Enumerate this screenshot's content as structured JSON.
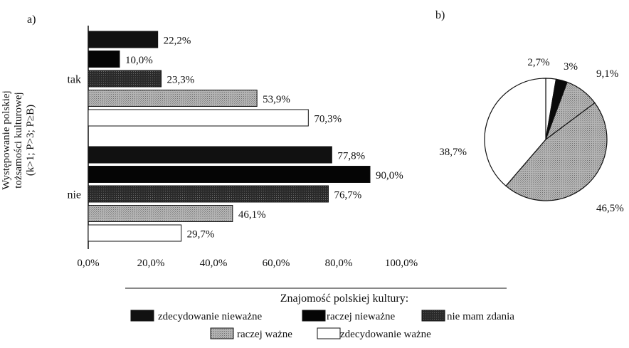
{
  "chart_data": [
    {
      "type": "bar",
      "orientation": "horizontal",
      "panel_label": "a)",
      "ylabel": "Występowanie polskiej\ntożsamości kulturowej\n(k>1; P>3; P≥B)",
      "categories": [
        "tak",
        "nie"
      ],
      "xlim": [
        0,
        100
      ],
      "xticks": [
        "0,0%",
        "20,0%",
        "40,0%",
        "60,0%",
        "80,0%",
        "100,0%"
      ],
      "legend_title": "Znajomość polskiej kultury:",
      "legend_position": "bottom",
      "series": [
        {
          "name": "zdecydowanie nieważne",
          "fill": "#111111",
          "values": [
            22.2,
            77.8
          ],
          "labels": [
            "22,2%",
            "77,8%"
          ]
        },
        {
          "name": "raczej nieważne",
          "fill": "#050505",
          "values": [
            10.0,
            90.0
          ],
          "labels": [
            "10,0%",
            "90,0%"
          ]
        },
        {
          "name": "nie mam zdania",
          "fill": "#3a3a3a",
          "values": [
            23.3,
            76.7
          ],
          "labels": [
            "23,3%",
            "76,7%"
          ]
        },
        {
          "name": "raczej ważne",
          "fill": "#a9a9a9",
          "values": [
            53.9,
            46.1
          ],
          "labels": [
            "53,9%",
            "46,1%"
          ]
        },
        {
          "name": "zdecydowanie ważne",
          "fill": "#ffffff",
          "values": [
            70.3,
            29.7
          ],
          "labels": [
            "70,3%",
            "29,7%"
          ]
        }
      ]
    },
    {
      "type": "pie",
      "panel_label": "b)",
      "slices": [
        {
          "value": 2.7,
          "label": "2,7%",
          "fill": "#ffffff"
        },
        {
          "value": 3.0,
          "label": "3%",
          "fill": "#0a0a0a"
        },
        {
          "value": 9.1,
          "label": "9,1%",
          "fill": "#a9a9a9"
        },
        {
          "value": 46.5,
          "label": "46,5%",
          "fill": "#a9a9a9"
        },
        {
          "value": 38.7,
          "label": "38,7%",
          "fill": "#ffffff"
        }
      ]
    }
  ]
}
